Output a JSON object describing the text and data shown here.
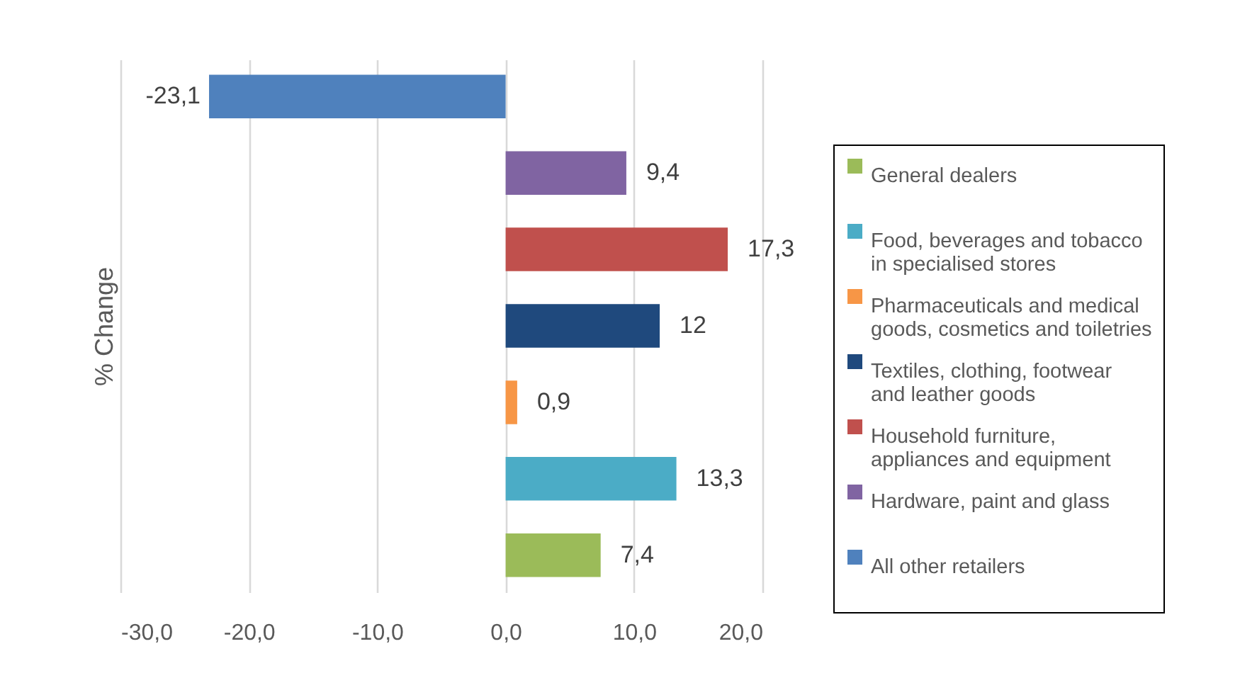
{
  "chart_data": {
    "type": "bar",
    "orientation": "horizontal",
    "ylabel": "% Change",
    "categories": [
      null,
      null,
      null,
      null,
      null,
      null,
      null
    ],
    "xlim": [
      -30,
      20
    ],
    "xticks": [
      {
        "value": -30,
        "label": "-30,0"
      },
      {
        "value": -20,
        "label": "-20,0"
      },
      {
        "value": -10,
        "label": "-10,0"
      },
      {
        "value": 0,
        "label": "0,0"
      },
      {
        "value": 10,
        "label": "10,0"
      },
      {
        "value": 20,
        "label": "20,0"
      }
    ],
    "grid": "x",
    "legend": "right",
    "series": [
      {
        "name": "General dealers",
        "color": "#9bbb59",
        "values": [
          null,
          null,
          null,
          null,
          null,
          null,
          7.4
        ],
        "value_labels": [
          null,
          null,
          null,
          null,
          null,
          null,
          "7,4"
        ]
      },
      {
        "name": "Food, beverages and tobacco in specialised stores",
        "color": "#4bacc6",
        "values": [
          null,
          null,
          null,
          null,
          null,
          13.3,
          null
        ],
        "value_labels": [
          null,
          null,
          null,
          null,
          null,
          "13,3",
          null
        ]
      },
      {
        "name": "Pharmaceuticals and medical goods, cosmetics and toiletries",
        "color": "#f79646",
        "values": [
          null,
          null,
          null,
          null,
          0.9,
          null,
          null
        ],
        "value_labels": [
          null,
          null,
          null,
          null,
          "0,9",
          null,
          null
        ]
      },
      {
        "name": "Textiles, clothing, footwear and leather goods",
        "color": "#1f497d",
        "values": [
          null,
          null,
          null,
          12,
          null,
          null,
          null
        ],
        "value_labels": [
          null,
          null,
          null,
          "12",
          null,
          null,
          null
        ]
      },
      {
        "name": "Household furniture, appliances and equipment",
        "color": "#c0504d",
        "values": [
          null,
          null,
          17.3,
          null,
          null,
          null,
          null
        ],
        "value_labels": [
          null,
          null,
          "17,3",
          null,
          null,
          null,
          null
        ]
      },
      {
        "name": "Hardware, paint and glass",
        "color": "#8064a2",
        "values": [
          null,
          9.4,
          null,
          null,
          null,
          null,
          null
        ],
        "value_labels": [
          null,
          "9,4",
          null,
          null,
          null,
          null,
          null
        ]
      },
      {
        "name": "All other retailers",
        "color": "#4f81bd",
        "values": [
          -23.1,
          null,
          null,
          null,
          null,
          null,
          null
        ],
        "value_labels": [
          "-23,1",
          null,
          null,
          null,
          null,
          null,
          null
        ]
      }
    ]
  }
}
